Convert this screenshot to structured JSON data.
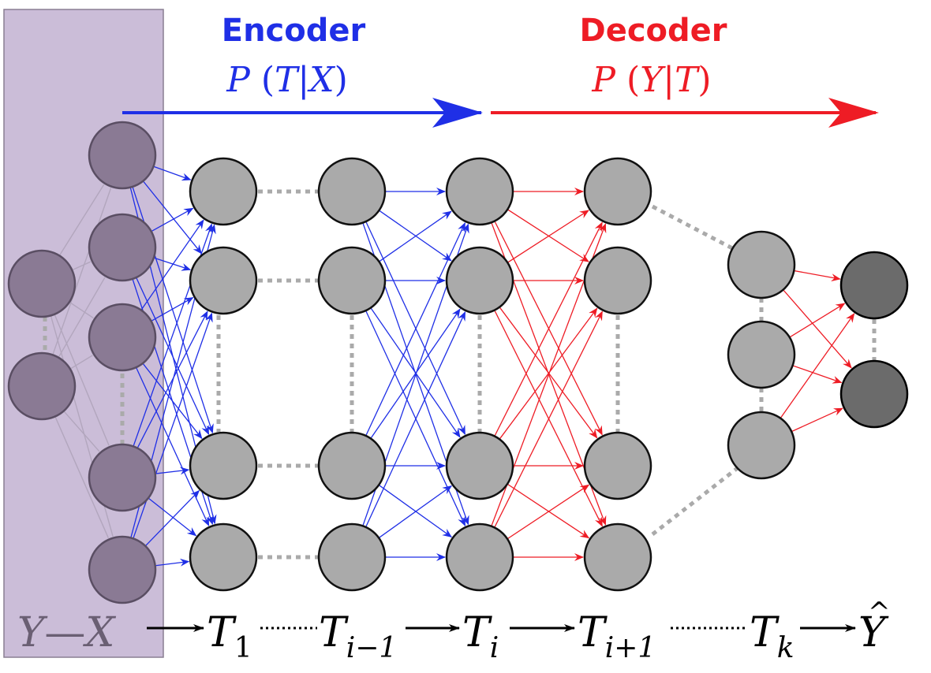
{
  "encoder": {
    "title": "Encoder",
    "prob_func": "P",
    "prob_lparen": "(",
    "prob_arg": "T",
    "prob_bar": "|",
    "prob_given": "X",
    "prob_rparen": ")",
    "color": "#1f2fe6"
  },
  "decoder": {
    "title": "Decoder",
    "prob_func": "P",
    "prob_lparen": "(",
    "prob_arg": "Y",
    "prob_bar": "|",
    "prob_given": "T",
    "prob_rparen": ")",
    "color": "#ee1c25"
  },
  "input_region": {
    "label_left": "Y",
    "label_sep": "—",
    "label_right": "X",
    "fill": "#cbbdd8",
    "node_fill": "#8a7a94"
  },
  "layers": [
    {
      "symbol": "T",
      "subscript": "1"
    },
    {
      "symbol": "T",
      "subscript": "i−1"
    },
    {
      "symbol": "T",
      "subscript": "i"
    },
    {
      "symbol": "T",
      "subscript": "i+1"
    },
    {
      "symbol": "T",
      "subscript": "k"
    }
  ],
  "output": {
    "symbol": "Y",
    "hat": "^",
    "node_fill": "#6b6b6b"
  },
  "colors": {
    "hidden_node": "#aaaaaa",
    "ellipsis": "#aaaaaa",
    "faint_edge": "#b2a6bd"
  }
}
